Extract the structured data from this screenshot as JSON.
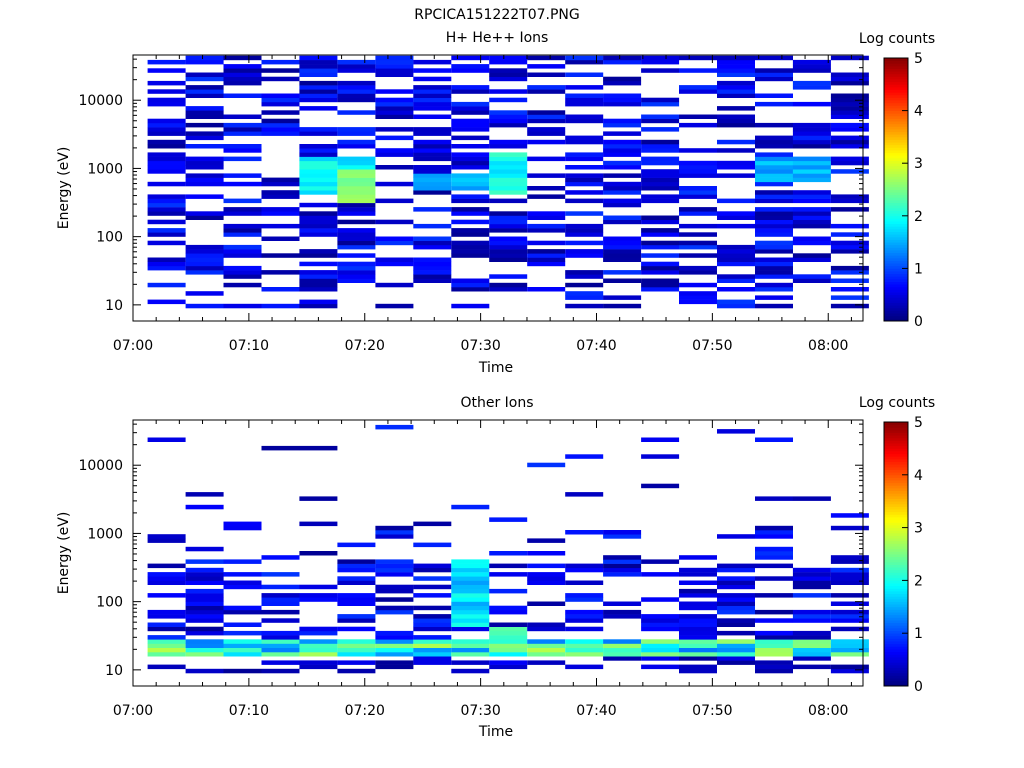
{
  "figure_title": "RPCICA151222T07.PNG",
  "chart_data": [
    {
      "type": "heatmap",
      "title": "H+ He++ Ions",
      "xlabel": "Time",
      "ylabel": "Energy (eV)",
      "x_start": "07:00",
      "x_end": "08:03",
      "xticks": [
        "07:00",
        "07:10",
        "07:20",
        "07:30",
        "07:40",
        "07:50",
        "08:00"
      ],
      "yscale": "log",
      "ylim": [
        5.8,
        46000
      ],
      "yticks": [
        10,
        100,
        1000,
        10000
      ],
      "ytick_labels": [
        "10",
        "100",
        "1000",
        "10000"
      ],
      "colorbar": {
        "label": "Log counts",
        "range": [
          0,
          5
        ],
        "ticks": [
          "0",
          "1",
          "2",
          "3",
          "4",
          "5"
        ],
        "colormap": "jet"
      },
      "columns": 19,
      "time_bins": [
        "07:01",
        "07:04",
        "07:08",
        "07:11",
        "07:14",
        "07:17",
        "07:21",
        "07:24",
        "07:27",
        "07:30",
        "07:34",
        "07:37",
        "07:40",
        "07:43",
        "07:47",
        "07:50",
        "07:53",
        "07:56",
        "07:59"
      ],
      "peaks": [
        {
          "time": "07:15",
          "energy_range": [
            400,
            1500
          ],
          "log_counts": 2.1
        },
        {
          "time": "07:18",
          "energy_range": [
            300,
            1000
          ],
          "log_counts": 2.7
        },
        {
          "time": "07:25",
          "energy_range": [
            500,
            900
          ],
          "log_counts": 1.8
        },
        {
          "time": "07:31",
          "energy_range": [
            400,
            1800
          ],
          "log_counts": 2.2
        },
        {
          "time": "07:55",
          "energy_range": [
            600,
            1400
          ],
          "log_counts": 1.7
        }
      ],
      "background_log_counts": [
        0.1,
        0.9
      ]
    },
    {
      "type": "heatmap",
      "title": "Other Ions",
      "xlabel": "Time",
      "ylabel": "Energy (eV)",
      "x_start": "07:00",
      "x_end": "08:03",
      "xticks": [
        "07:00",
        "07:10",
        "07:20",
        "07:30",
        "07:40",
        "07:50",
        "08:00"
      ],
      "yscale": "log",
      "ylim": [
        5.8,
        46000
      ],
      "yticks": [
        10,
        100,
        1000,
        10000
      ],
      "ytick_labels": [
        "10",
        "100",
        "1000",
        "10000"
      ],
      "colorbar": {
        "label": "Log counts",
        "range": [
          0,
          5
        ],
        "ticks": [
          "0",
          "1",
          "2",
          "3",
          "4",
          "5"
        ],
        "colormap": "jet"
      },
      "columns": 19,
      "time_bins": [
        "07:01",
        "07:04",
        "07:08",
        "07:11",
        "07:14",
        "07:17",
        "07:21",
        "07:24",
        "07:27",
        "07:30",
        "07:34",
        "07:37",
        "07:40",
        "07:43",
        "07:47",
        "07:50",
        "07:53",
        "07:56",
        "07:59"
      ],
      "low_energy_band": {
        "energy_range": [
          15,
          30
        ],
        "log_counts_range": [
          1.2,
          2.8
        ]
      },
      "peaks": [
        {
          "time": "07:18",
          "energy_range": [
            18,
            30
          ],
          "log_counts": 2.8
        },
        {
          "time": "07:28",
          "energy_range": [
            40,
            400
          ],
          "log_counts": 2.0
        },
        {
          "time": "07:31",
          "energy_range": [
            20,
            40
          ],
          "log_counts": 2.9
        }
      ],
      "background_log_counts": [
        0.1,
        0.9
      ]
    }
  ]
}
